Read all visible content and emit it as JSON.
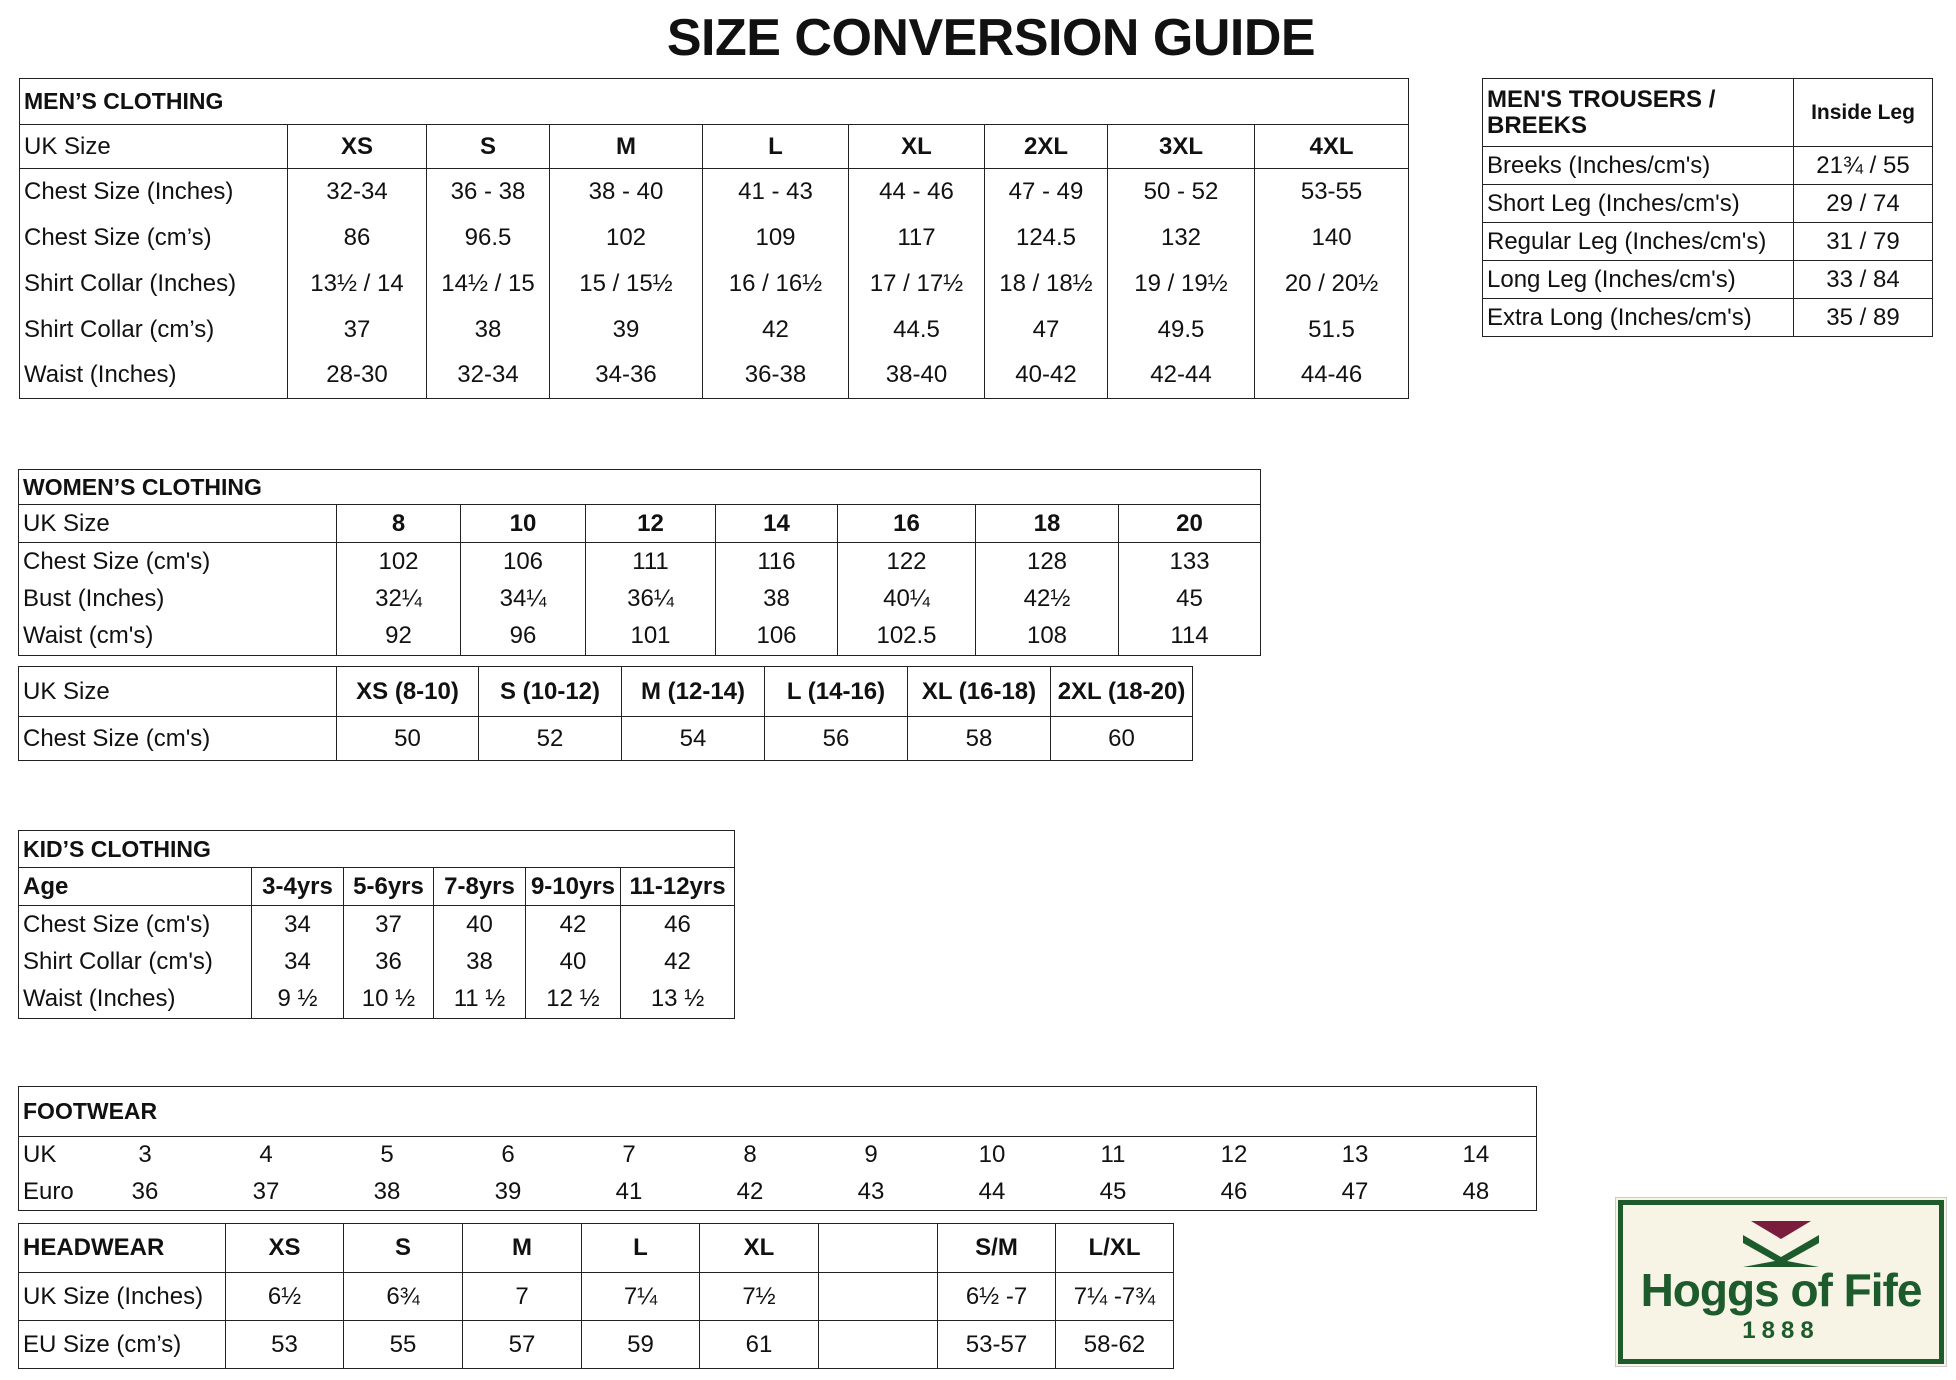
{
  "title": "SIZE CONVERSION GUIDE",
  "mens_clothing": {
    "title": "MEN’S CLOTHING",
    "header": [
      "UK Size",
      "XS",
      "S",
      "M",
      "L",
      "XL",
      "2XL",
      "3XL",
      "4XL"
    ],
    "rows": [
      [
        "Chest Size (Inches)",
        "32-34",
        "36 - 38",
        "38 - 40",
        "41 - 43",
        "44 - 46",
        "47 - 49",
        "50 - 52",
        "53-55"
      ],
      [
        "Chest Size (cm’s)",
        "86",
        "96.5",
        "102",
        "109",
        "117",
        "124.5",
        "132",
        "140"
      ],
      [
        "Shirt Collar (Inches)",
        "13½ / 14",
        "14½ / 15",
        "15 / 15½",
        "16 / 16½",
        "17 / 17½",
        "18 / 18½",
        "19 / 19½",
        "20 / 20½"
      ],
      [
        "Shirt Collar (cm’s)",
        "37",
        "38",
        "39",
        "42",
        "44.5",
        "47",
        "49.5",
        "51.5"
      ],
      [
        "Waist (Inches)",
        "28-30",
        "32-34",
        "34-36",
        "36-38",
        "38-40",
        "40-42",
        "42-44",
        "44-46"
      ]
    ]
  },
  "mens_trousers": {
    "header": [
      "MEN'S TROUSERS / BREEKS",
      "Inside Leg"
    ],
    "rows": [
      [
        "Breeks (Inches/cm's)",
        "21¾ / 55"
      ],
      [
        "Short Leg (Inches/cm's)",
        "29 / 74"
      ],
      [
        "Regular Leg (Inches/cm's)",
        "31 / 79"
      ],
      [
        "Long Leg (Inches/cm's)",
        "33 / 84"
      ],
      [
        "Extra Long (Inches/cm's)",
        "35 / 89"
      ]
    ]
  },
  "womens_clothing": {
    "title": "WOMEN’S CLOTHING",
    "header": [
      "UK Size",
      "8",
      "10",
      "12",
      "14",
      "16",
      "18",
      "20"
    ],
    "rows": [
      [
        "Chest Size (cm's)",
        "102",
        "106",
        "111",
        "116",
        "122",
        "128",
        "133"
      ],
      [
        "Bust (Inches)",
        "32¼",
        "34¼",
        "36¼",
        "38",
        "40¼",
        "42½",
        "45"
      ],
      [
        "Waist (cm's)",
        "92",
        "96",
        "101",
        "106",
        "102.5",
        "108",
        "114"
      ]
    ]
  },
  "womens_tops": {
    "header": [
      "UK Size",
      "XS (8-10)",
      "S (10-12)",
      "M (12-14)",
      "L (14-16)",
      "XL (16-18)",
      "2XL (18-20)"
    ],
    "rows": [
      [
        "Chest Size (cm's)",
        "50",
        "52",
        "54",
        "56",
        "58",
        "60"
      ]
    ]
  },
  "kids_clothing": {
    "title": "KID’S CLOTHING",
    "header": [
      "Age",
      "3-4yrs",
      "5-6yrs",
      "7-8yrs",
      "9-10yrs",
      "11-12yrs"
    ],
    "rows": [
      [
        "Chest Size (cm's)",
        "34",
        "37",
        "40",
        "42",
        "46"
      ],
      [
        "Shirt Collar (cm's)",
        "34",
        "36",
        "38",
        "40",
        "42"
      ],
      [
        "Waist (Inches)",
        "9 ½",
        "10 ½",
        "11 ½",
        "12 ½",
        "13 ½"
      ]
    ]
  },
  "footwear": {
    "title": "FOOTWEAR",
    "rows": [
      [
        "UK",
        "3",
        "4",
        "5",
        "6",
        "7",
        "8",
        "9",
        "10",
        "11",
        "12",
        "13",
        "14"
      ],
      [
        "Euro",
        "36",
        "37",
        "38",
        "39",
        "41",
        "42",
        "43",
        "44",
        "45",
        "46",
        "47",
        "48"
      ]
    ]
  },
  "headwear": {
    "header": [
      "HEADWEAR",
      "XS",
      "S",
      "M",
      "L",
      "XL",
      null,
      "S/M",
      "L/XL"
    ],
    "rows": [
      [
        "UK Size (Inches)",
        "6½",
        "6¾",
        "7",
        "7¼",
        "7½",
        null,
        "6½ -7",
        "7¼ -7¾"
      ],
      [
        "EU Size (cm’s)",
        "53",
        "55",
        "57",
        "59",
        "61",
        null,
        "53-57",
        "58-62"
      ]
    ]
  },
  "logo": {
    "name": "Hoggs of Fife",
    "year": "1888"
  }
}
